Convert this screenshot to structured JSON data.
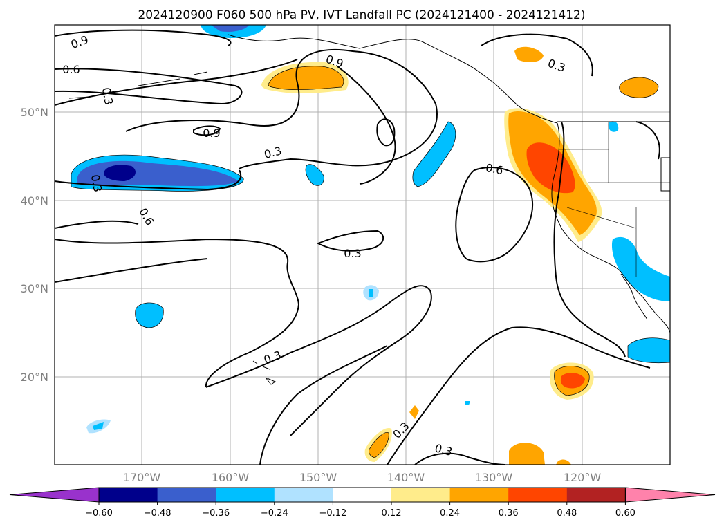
{
  "title": "2024120900 F060 500 hPa PV, IVT Landfall PC (2024121400 - 2024121412)",
  "map": {
    "lat_labels": [
      "50°N",
      "40°N",
      "30°N",
      "20°N"
    ],
    "lon_labels": [
      "170°W",
      "160°W",
      "150°W",
      "140°W",
      "130°W",
      "120°W"
    ],
    "gridlines": true
  },
  "contour_labels": [
    "0.9",
    "0.6",
    "0.3",
    "0.9",
    "0.9",
    "0.3",
    "0.3",
    "0.6",
    "0.6",
    "0.3",
    "0.3",
    "0.3",
    "0.3",
    "0.3"
  ],
  "colorbar": {
    "ticks": [
      "−0.60",
      "−0.48",
      "−0.36",
      "−0.24",
      "−0.12",
      "0.12",
      "0.24",
      "0.36",
      "0.48",
      "0.60"
    ],
    "colors": [
      "#9932cc",
      "#00008b",
      "#3a5fcd",
      "#00bfff",
      "#b0e2ff",
      "#ffffff",
      "#ffec8b",
      "#ffa500",
      "#ff4500",
      "#b22222",
      "#ff82ab"
    ]
  },
  "fill_colors": {
    "neg_dark": "#00008b",
    "neg_mid": "#3a5fcd",
    "neg_light": "#00bfff",
    "neg_pale": "#b0e2ff",
    "pos_pale": "#ffec8b",
    "pos_mid": "#ffa500",
    "pos_strong": "#ff4500"
  }
}
